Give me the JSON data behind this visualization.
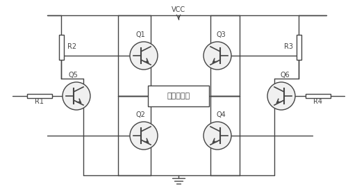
{
  "bg_color": "#ffffff",
  "line_color": "#444444",
  "transistor_fill": "#f0f0f0",
  "vcc_label": "VCC",
  "motor_label": "电机转动环",
  "q_labels": [
    "Q1",
    "Q2",
    "Q3",
    "Q4",
    "Q5",
    "Q6"
  ],
  "r_labels": [
    "R1",
    "R2",
    "R3",
    "R4"
  ],
  "figsize": [
    5.14,
    2.76
  ],
  "dpi": 100,
  "lw": 1.0,
  "transistor_r": 20
}
